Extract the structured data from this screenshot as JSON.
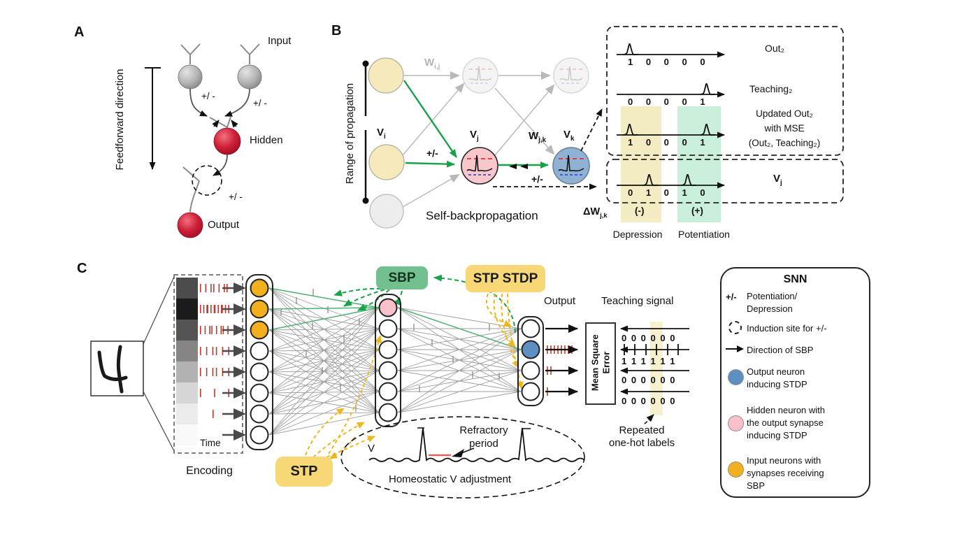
{
  "panel_a": {
    "label": "A",
    "feedforward": "Feedforward direction",
    "input": "Input",
    "hidden": "Hidden",
    "output": "Output",
    "plus_minus": "+/ -"
  },
  "panel_b": {
    "label": "B",
    "range": "Range of propagation",
    "self_backprop": "Self-backpropagation",
    "plus_minus": "+/-",
    "v_i": {
      "base": "V",
      "sub": "i"
    },
    "v_j": {
      "base": "V",
      "sub": "j"
    },
    "v_k": {
      "base": "V",
      "sub": "k"
    },
    "w_ij": {
      "base": "W",
      "sub": "i,j"
    },
    "w_jk": {
      "base": "W",
      "sub": "j,k"
    },
    "dw_jk": {
      "base": "ΔW",
      "sub": "j,k"
    },
    "rows": {
      "out2": {
        "label": "Out₂",
        "bits": "1 0 0 0 0"
      },
      "teaching2": {
        "label": "Teaching₂",
        "bits": "0 0 0 0 1"
      },
      "updated": {
        "label_line1": "Updated Out₂",
        "label_line2": "with MSE",
        "label_line3": "(Out₂, Teaching₂)",
        "bits": "1 0 0 0 1"
      },
      "vj": {
        "label": {
          "base": "V",
          "sub": "j"
        },
        "bits": "0 1 0 1 0"
      }
    },
    "minus_tag": "(-)",
    "plus_tag": "(+)",
    "depression": "Depression",
    "potentiation": "Potentiation"
  },
  "panel_c": {
    "label": "C",
    "encoding": "Encoding",
    "time": "Time",
    "sbp_badge": "SBP",
    "stp_stdp_badge": "STP STDP",
    "stp_badge": "STP",
    "output": "Output",
    "teaching_signal": "Teaching signal",
    "mse_line1": "Mean Square",
    "mse_line2": "Error",
    "teaching_rows": [
      "0 0 0 0 0 0",
      "1 1 1 1 1 1",
      "0 0 0 0 0 0",
      "0 0 0 0 0 0"
    ],
    "repeated_line1": "Repeated",
    "repeated_line2": "one-hot labels",
    "v": "V",
    "refractory_line1": "Refractory",
    "refractory_line2": "period",
    "homeostatic": "Homeostatic V adjustment",
    "encoding_spike_counts": [
      7,
      12,
      8,
      6,
      6,
      3,
      1,
      0
    ],
    "output_spike_counts": [
      0,
      8,
      2,
      1
    ]
  },
  "legend": {
    "title": "SNN",
    "items": [
      {
        "icon": "plus-minus-icon",
        "icon_label": "+/-",
        "lines": [
          "Potentiation/",
          "Depression"
        ]
      },
      {
        "icon": "dashed-circle-icon",
        "lines": [
          "Induction site for +/-"
        ]
      },
      {
        "icon": "sbp-direction-arrow-icon",
        "lines": [
          "Direction of SBP"
        ]
      },
      {
        "icon": "output-neuron-icon",
        "lines": [
          "Output neuron",
          "inducing STDP"
        ]
      },
      {
        "icon": "hidden-neuron-icon",
        "lines": [
          "Hidden neuron with",
          "the output synapse",
          "inducing STDP"
        ]
      },
      {
        "icon": "input-neuron-icon",
        "lines": [
          "Input neurons with",
          "synapses receiving",
          "SBP"
        ]
      }
    ]
  },
  "colors": {
    "sbp_green": "#18a24a",
    "badge_green": "#72c08e",
    "badge_yellow": "#f8d876",
    "stdp_yellow": "#edb71e",
    "input_orange": "#f2b01e",
    "hidden_pink": "#f8c0c8",
    "output_blue": "#5d8fc0",
    "pale_input_yellow": "#f6e9bc",
    "spike_red": "#c0392b",
    "depression_band": "#f3ecc3",
    "potentiation_band": "#c9eed9",
    "red_neuron": "#c41230"
  }
}
